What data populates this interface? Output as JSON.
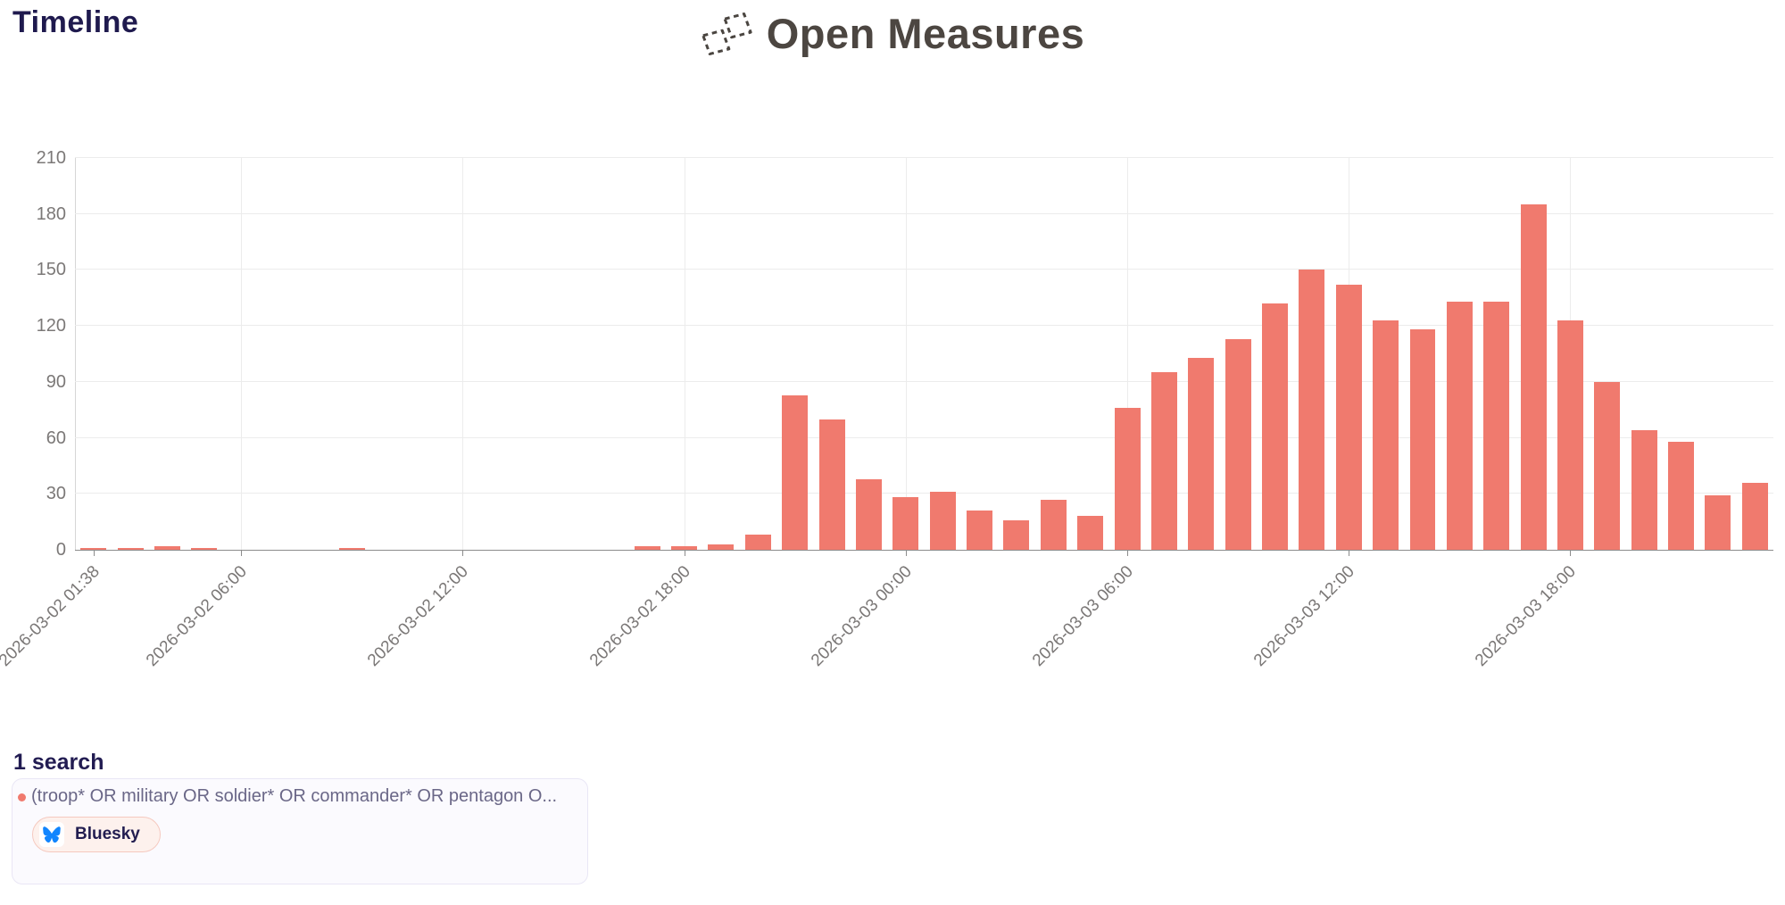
{
  "page": {
    "title": "Timeline"
  },
  "header": {
    "brand": "Open Measures",
    "logo_icon": "open-measures-dashed-boxes-icon"
  },
  "chart_data": {
    "type": "bar",
    "title": "Timeline",
    "bar_color": "#F07A6E",
    "grid": true,
    "ylim": [
      0,
      210
    ],
    "yticks": [
      0,
      30,
      60,
      90,
      120,
      150,
      180,
      210
    ],
    "n_slots": 46,
    "x_unit": "hourly bins (first bin starts 2026-03-02 01:38)",
    "values": [
      1,
      1,
      2,
      1,
      0,
      0,
      0,
      1,
      0,
      0,
      0,
      0,
      0,
      0,
      0,
      2,
      2,
      3,
      8,
      83,
      70,
      38,
      28,
      31,
      21,
      16,
      27,
      18,
      76,
      95,
      103,
      113,
      132,
      150,
      142,
      123,
      118,
      133,
      133,
      185,
      123,
      90,
      64,
      58,
      29,
      36
    ],
    "xticks": [
      {
        "slot": 0,
        "label": "2026-03-02 01:38"
      },
      {
        "slot": 4,
        "label": "2026-03-02 06:00"
      },
      {
        "slot": 10,
        "label": "2026-03-02 12:00"
      },
      {
        "slot": 16,
        "label": "2026-03-02 18:00"
      },
      {
        "slot": 22,
        "label": "2026-03-03 00:00"
      },
      {
        "slot": 28,
        "label": "2026-03-03 06:00"
      },
      {
        "slot": 34,
        "label": "2026-03-03 12:00"
      },
      {
        "slot": 40,
        "label": "2026-03-03 18:00"
      }
    ],
    "series": [
      {
        "name": "(troop* OR military OR soldier* OR commander* OR pentagon O...",
        "platform": "Bluesky"
      }
    ]
  },
  "legend": {
    "count_label": "1 search",
    "query": "(troop* OR military OR soldier* OR commander* OR pentagon O...",
    "chip": {
      "label": "Bluesky",
      "icon": "bluesky-butterfly-icon",
      "color": "#1185FE"
    }
  }
}
